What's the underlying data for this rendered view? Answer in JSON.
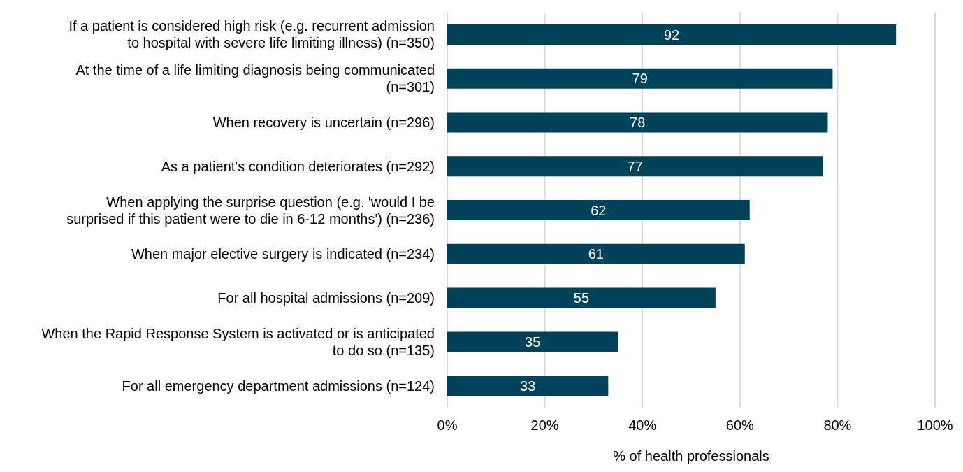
{
  "chart_data": {
    "type": "bar",
    "orientation": "horizontal",
    "xlabel": "% of health professionals",
    "categories": [
      "If a patient is considered high risk (e.g. recurrent admission to hospital with severe life limiting illness) (n=350)",
      "At the time of a life limiting diagnosis being communicated (n=301)",
      "When recovery is uncertain (n=296)",
      "As a patient's condition deteriorates (n=292)",
      "When applying the surprise question (e.g. 'would I be surprised if this patient were to die in 6-12 months') (n=236)",
      "When major elective surgery is indicated (n=234)",
      "For all hospital admissions (n=209)",
      "When the Rapid Response System is activated or is anticipated to do so (n=135)",
      "For all emergency department admissions (n=124)"
    ],
    "values": [
      92,
      79,
      78,
      77,
      62,
      61,
      55,
      35,
      33
    ],
    "color": "#004259",
    "data_labels": true,
    "xlim": [
      0,
      100
    ],
    "xticks": [
      {
        "value": 0,
        "label": "0%"
      },
      {
        "value": 20,
        "label": "20%"
      },
      {
        "value": 40,
        "label": "40%"
      },
      {
        "value": 60,
        "label": "60%"
      },
      {
        "value": 80,
        "label": "80%"
      },
      {
        "value": 100,
        "label": "100%"
      }
    ],
    "grid": "x"
  }
}
